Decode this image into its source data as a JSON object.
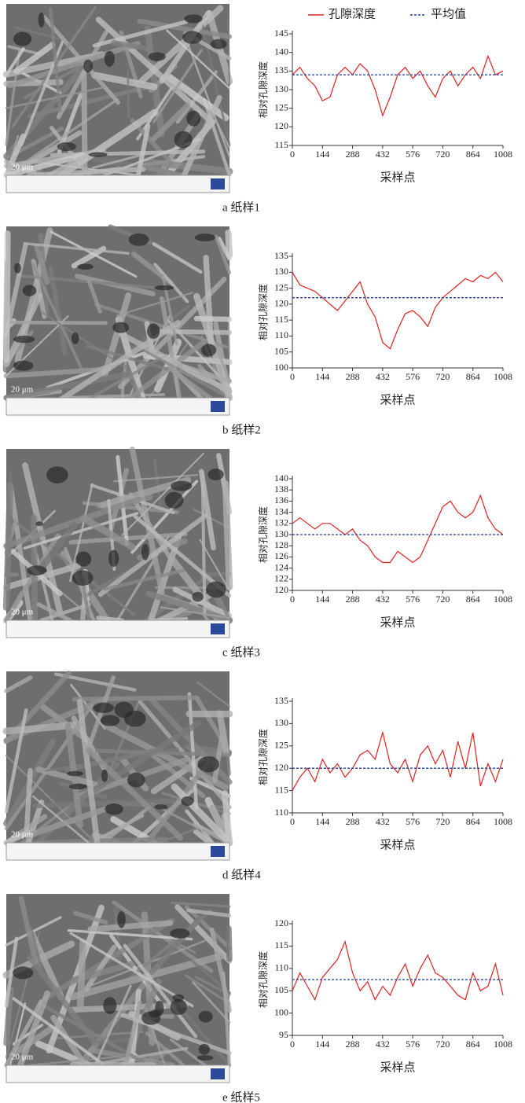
{
  "chart_data": [
    {
      "type": "line",
      "caption": "a 纸样1",
      "micrograph_scale": "20 μm",
      "ylabel": "相对孔隙深度",
      "xlabel": "采样点",
      "x": [
        0,
        36,
        72,
        108,
        144,
        180,
        216,
        252,
        288,
        324,
        360,
        396,
        432,
        468,
        504,
        540,
        576,
        612,
        648,
        684,
        720,
        756,
        792,
        828,
        864,
        900,
        936,
        972,
        1008
      ],
      "xlim": [
        0,
        1008
      ],
      "xticks": [
        0,
        144,
        288,
        432,
        576,
        720,
        864,
        1008
      ],
      "ylim": [
        115,
        145
      ],
      "yticks": [
        115,
        120,
        125,
        130,
        135,
        140,
        145
      ],
      "series": [
        {
          "name": "孔隙深度",
          "color": "#e02020",
          "values": [
            134,
            136,
            133,
            131,
            127,
            128,
            134,
            136,
            134,
            137,
            135,
            130,
            123,
            128,
            134,
            136,
            133,
            135,
            131,
            128,
            133,
            135,
            131,
            134,
            136,
            133,
            139,
            134,
            135
          ]
        },
        {
          "name": "平均值",
          "color": "#1f3d99",
          "dashed": true,
          "values": [
            134,
            134,
            134,
            134,
            134,
            134,
            134,
            134,
            134,
            134,
            134,
            134,
            134,
            134,
            134,
            134,
            134,
            134,
            134,
            134,
            134,
            134,
            134,
            134,
            134,
            134,
            134,
            134,
            134
          ]
        }
      ]
    },
    {
      "type": "line",
      "caption": "b 纸样2",
      "micrograph_scale": "20 μm",
      "ylabel": "相对孔隙深度",
      "xlabel": "采样点",
      "x": [
        0,
        36,
        72,
        108,
        144,
        180,
        216,
        252,
        288,
        324,
        360,
        396,
        432,
        468,
        504,
        540,
        576,
        612,
        648,
        684,
        720,
        756,
        792,
        828,
        864,
        900,
        936,
        972,
        1008
      ],
      "xlim": [
        0,
        1008
      ],
      "xticks": [
        0,
        144,
        288,
        432,
        576,
        720,
        864,
        1008
      ],
      "ylim": [
        100,
        135
      ],
      "yticks": [
        100,
        105,
        110,
        115,
        120,
        125,
        130,
        135
      ],
      "series": [
        {
          "color": "#e02020",
          "values": [
            130,
            126,
            125,
            124,
            122,
            120,
            118,
            121,
            124,
            127,
            120,
            116,
            108,
            106,
            112,
            117,
            118,
            116,
            113,
            119,
            122,
            124,
            126,
            128,
            127,
            129,
            128,
            130,
            127
          ]
        },
        {
          "color": "#1f3d99",
          "dashed": true,
          "values": [
            122,
            122,
            122,
            122,
            122,
            122,
            122,
            122,
            122,
            122,
            122,
            122,
            122,
            122,
            122,
            122,
            122,
            122,
            122,
            122,
            122,
            122,
            122,
            122,
            122,
            122,
            122,
            122,
            122
          ]
        }
      ]
    },
    {
      "type": "line",
      "caption": "c 纸样3",
      "micrograph_scale": "20 μm",
      "ylabel": "相对孔隙深度",
      "xlabel": "采样点",
      "x": [
        0,
        36,
        72,
        108,
        144,
        180,
        216,
        252,
        288,
        324,
        360,
        396,
        432,
        468,
        504,
        540,
        576,
        612,
        648,
        684,
        720,
        756,
        792,
        828,
        864,
        900,
        936,
        972,
        1008
      ],
      "xlim": [
        0,
        1008
      ],
      "xticks": [
        0,
        144,
        288,
        432,
        576,
        720,
        864,
        1008
      ],
      "ylim": [
        120,
        140
      ],
      "yticks": [
        120,
        122,
        124,
        126,
        128,
        130,
        132,
        134,
        136,
        138,
        140
      ],
      "series": [
        {
          "color": "#e02020",
          "values": [
            132,
            133,
            132,
            131,
            132,
            132,
            131,
            130,
            131,
            129,
            128,
            126,
            125,
            125,
            127,
            126,
            125,
            126,
            129,
            132,
            135,
            136,
            134,
            133,
            134,
            137,
            133,
            131,
            130
          ]
        },
        {
          "color": "#1f3d99",
          "dashed": true,
          "values": [
            130,
            130,
            130,
            130,
            130,
            130,
            130,
            130,
            130,
            130,
            130,
            130,
            130,
            130,
            130,
            130,
            130,
            130,
            130,
            130,
            130,
            130,
            130,
            130,
            130,
            130,
            130,
            130,
            130
          ]
        }
      ]
    },
    {
      "type": "line",
      "caption": "d 纸样4",
      "micrograph_scale": "20 μm",
      "ylabel": "相对孔隙深度",
      "xlabel": "采样点",
      "x": [
        0,
        36,
        72,
        108,
        144,
        180,
        216,
        252,
        288,
        324,
        360,
        396,
        432,
        468,
        504,
        540,
        576,
        612,
        648,
        684,
        720,
        756,
        792,
        828,
        864,
        900,
        936,
        972,
        1008
      ],
      "xlim": [
        0,
        1008
      ],
      "xticks": [
        0,
        144,
        288,
        432,
        576,
        720,
        864,
        1008
      ],
      "ylim": [
        110,
        135
      ],
      "yticks": [
        110,
        115,
        120,
        125,
        130,
        135
      ],
      "series": [
        {
          "color": "#e02020",
          "values": [
            115,
            118,
            120,
            117,
            122,
            119,
            121,
            118,
            120,
            123,
            124,
            122,
            128,
            121,
            119,
            122,
            117,
            123,
            125,
            121,
            124,
            118,
            126,
            120,
            128,
            116,
            121,
            117,
            122
          ]
        },
        {
          "color": "#1f3d99",
          "dashed": true,
          "values": [
            120,
            120,
            120,
            120,
            120,
            120,
            120,
            120,
            120,
            120,
            120,
            120,
            120,
            120,
            120,
            120,
            120,
            120,
            120,
            120,
            120,
            120,
            120,
            120,
            120,
            120,
            120,
            120,
            120
          ]
        }
      ]
    },
    {
      "type": "line",
      "caption": "e 纸样5",
      "micrograph_scale": "20 μm",
      "ylabel": "相对孔隙深度",
      "xlabel": "采样点",
      "x": [
        0,
        36,
        72,
        108,
        144,
        180,
        216,
        252,
        288,
        324,
        360,
        396,
        432,
        468,
        504,
        540,
        576,
        612,
        648,
        684,
        720,
        756,
        792,
        828,
        864,
        900,
        936,
        972,
        1008
      ],
      "xlim": [
        0,
        1008
      ],
      "xticks": [
        0,
        144,
        288,
        432,
        576,
        720,
        864,
        1008
      ],
      "ylim": [
        95,
        120
      ],
      "yticks": [
        95,
        100,
        105,
        110,
        115,
        120
      ],
      "series": [
        {
          "color": "#e02020",
          "values": [
            105,
            109,
            106,
            103,
            108,
            110,
            112,
            116,
            109,
            105,
            107,
            103,
            106,
            104,
            108,
            111,
            106,
            110,
            113,
            109,
            108,
            106,
            104,
            103,
            109,
            105,
            106,
            111,
            104
          ]
        },
        {
          "color": "#1f3d99",
          "dashed": true,
          "values": [
            107.5,
            107.5,
            107.5,
            107.5,
            107.5,
            107.5,
            107.5,
            107.5,
            107.5,
            107.5,
            107.5,
            107.5,
            107.5,
            107.5,
            107.5,
            107.5,
            107.5,
            107.5,
            107.5,
            107.5,
            107.5,
            107.5,
            107.5,
            107.5,
            107.5,
            107.5,
            107.5,
            107.5,
            107.5
          ]
        }
      ]
    }
  ]
}
